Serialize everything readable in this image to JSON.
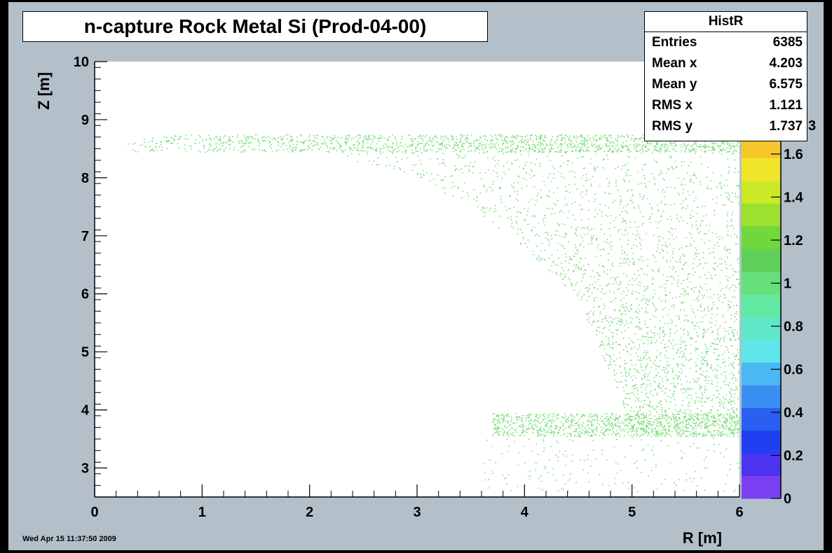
{
  "chart_data": {
    "type": "scatter",
    "title": "n-capture Rock Metal Si (Prod-04-00)",
    "xlabel": "R [m]",
    "ylabel": "Z [m]",
    "xlim": [
      0,
      6
    ],
    "ylim": [
      2.5,
      10
    ],
    "x_ticks": [
      "0",
      "1",
      "2",
      "3",
      "4",
      "5",
      "6"
    ],
    "y_ticks": [
      "3",
      "4",
      "5",
      "6",
      "7",
      "8",
      "9",
      "10"
    ],
    "color_scale": {
      "range": [
        0,
        1.6
      ],
      "ticks": [
        "0",
        "0.2",
        "0.4",
        "0.6",
        "0.8",
        "1",
        "1.2",
        "1.4",
        "1.6"
      ],
      "colors": [
        "#7b3ff2",
        "#4c33f0",
        "#1f3ff0",
        "#2a5ff2",
        "#3a8ff2",
        "#4ab8f2",
        "#5ee6ea",
        "#5ee8c8",
        "#62e8a0",
        "#66e07a",
        "#5ed05a",
        "#70d83a",
        "#9ee02e",
        "#cce826",
        "#f2e62a",
        "#f7c62a"
      ],
      "partial_top_label": "3"
    },
    "point_color": "#78dc78",
    "regions": [
      {
        "description": "band",
        "r_range": [
          0.3,
          6.0
        ],
        "z_range": [
          8.45,
          8.75
        ]
      },
      {
        "description": "curved edge",
        "points": [
          [
            2.0,
            8.5
          ],
          [
            3.0,
            8.0
          ],
          [
            3.5,
            7.5
          ],
          [
            4.0,
            6.8
          ],
          [
            4.5,
            5.9
          ],
          [
            4.8,
            4.6
          ],
          [
            5.0,
            3.7
          ]
        ]
      },
      {
        "description": "band",
        "r_range": [
          3.7,
          6.0
        ],
        "z_range": [
          3.55,
          3.95
        ]
      }
    ]
  },
  "stats": {
    "title": "HistR",
    "rows": [
      {
        "label": "Entries",
        "value": "6385"
      },
      {
        "label": "Mean x",
        "value": "4.203"
      },
      {
        "label": "Mean y",
        "value": "6.575"
      },
      {
        "label": "RMS x",
        "value": "1.121"
      },
      {
        "label": "RMS y",
        "value": "1.737"
      }
    ]
  },
  "footer": {
    "date": "Wed Apr 15 11:37:50 2009"
  }
}
